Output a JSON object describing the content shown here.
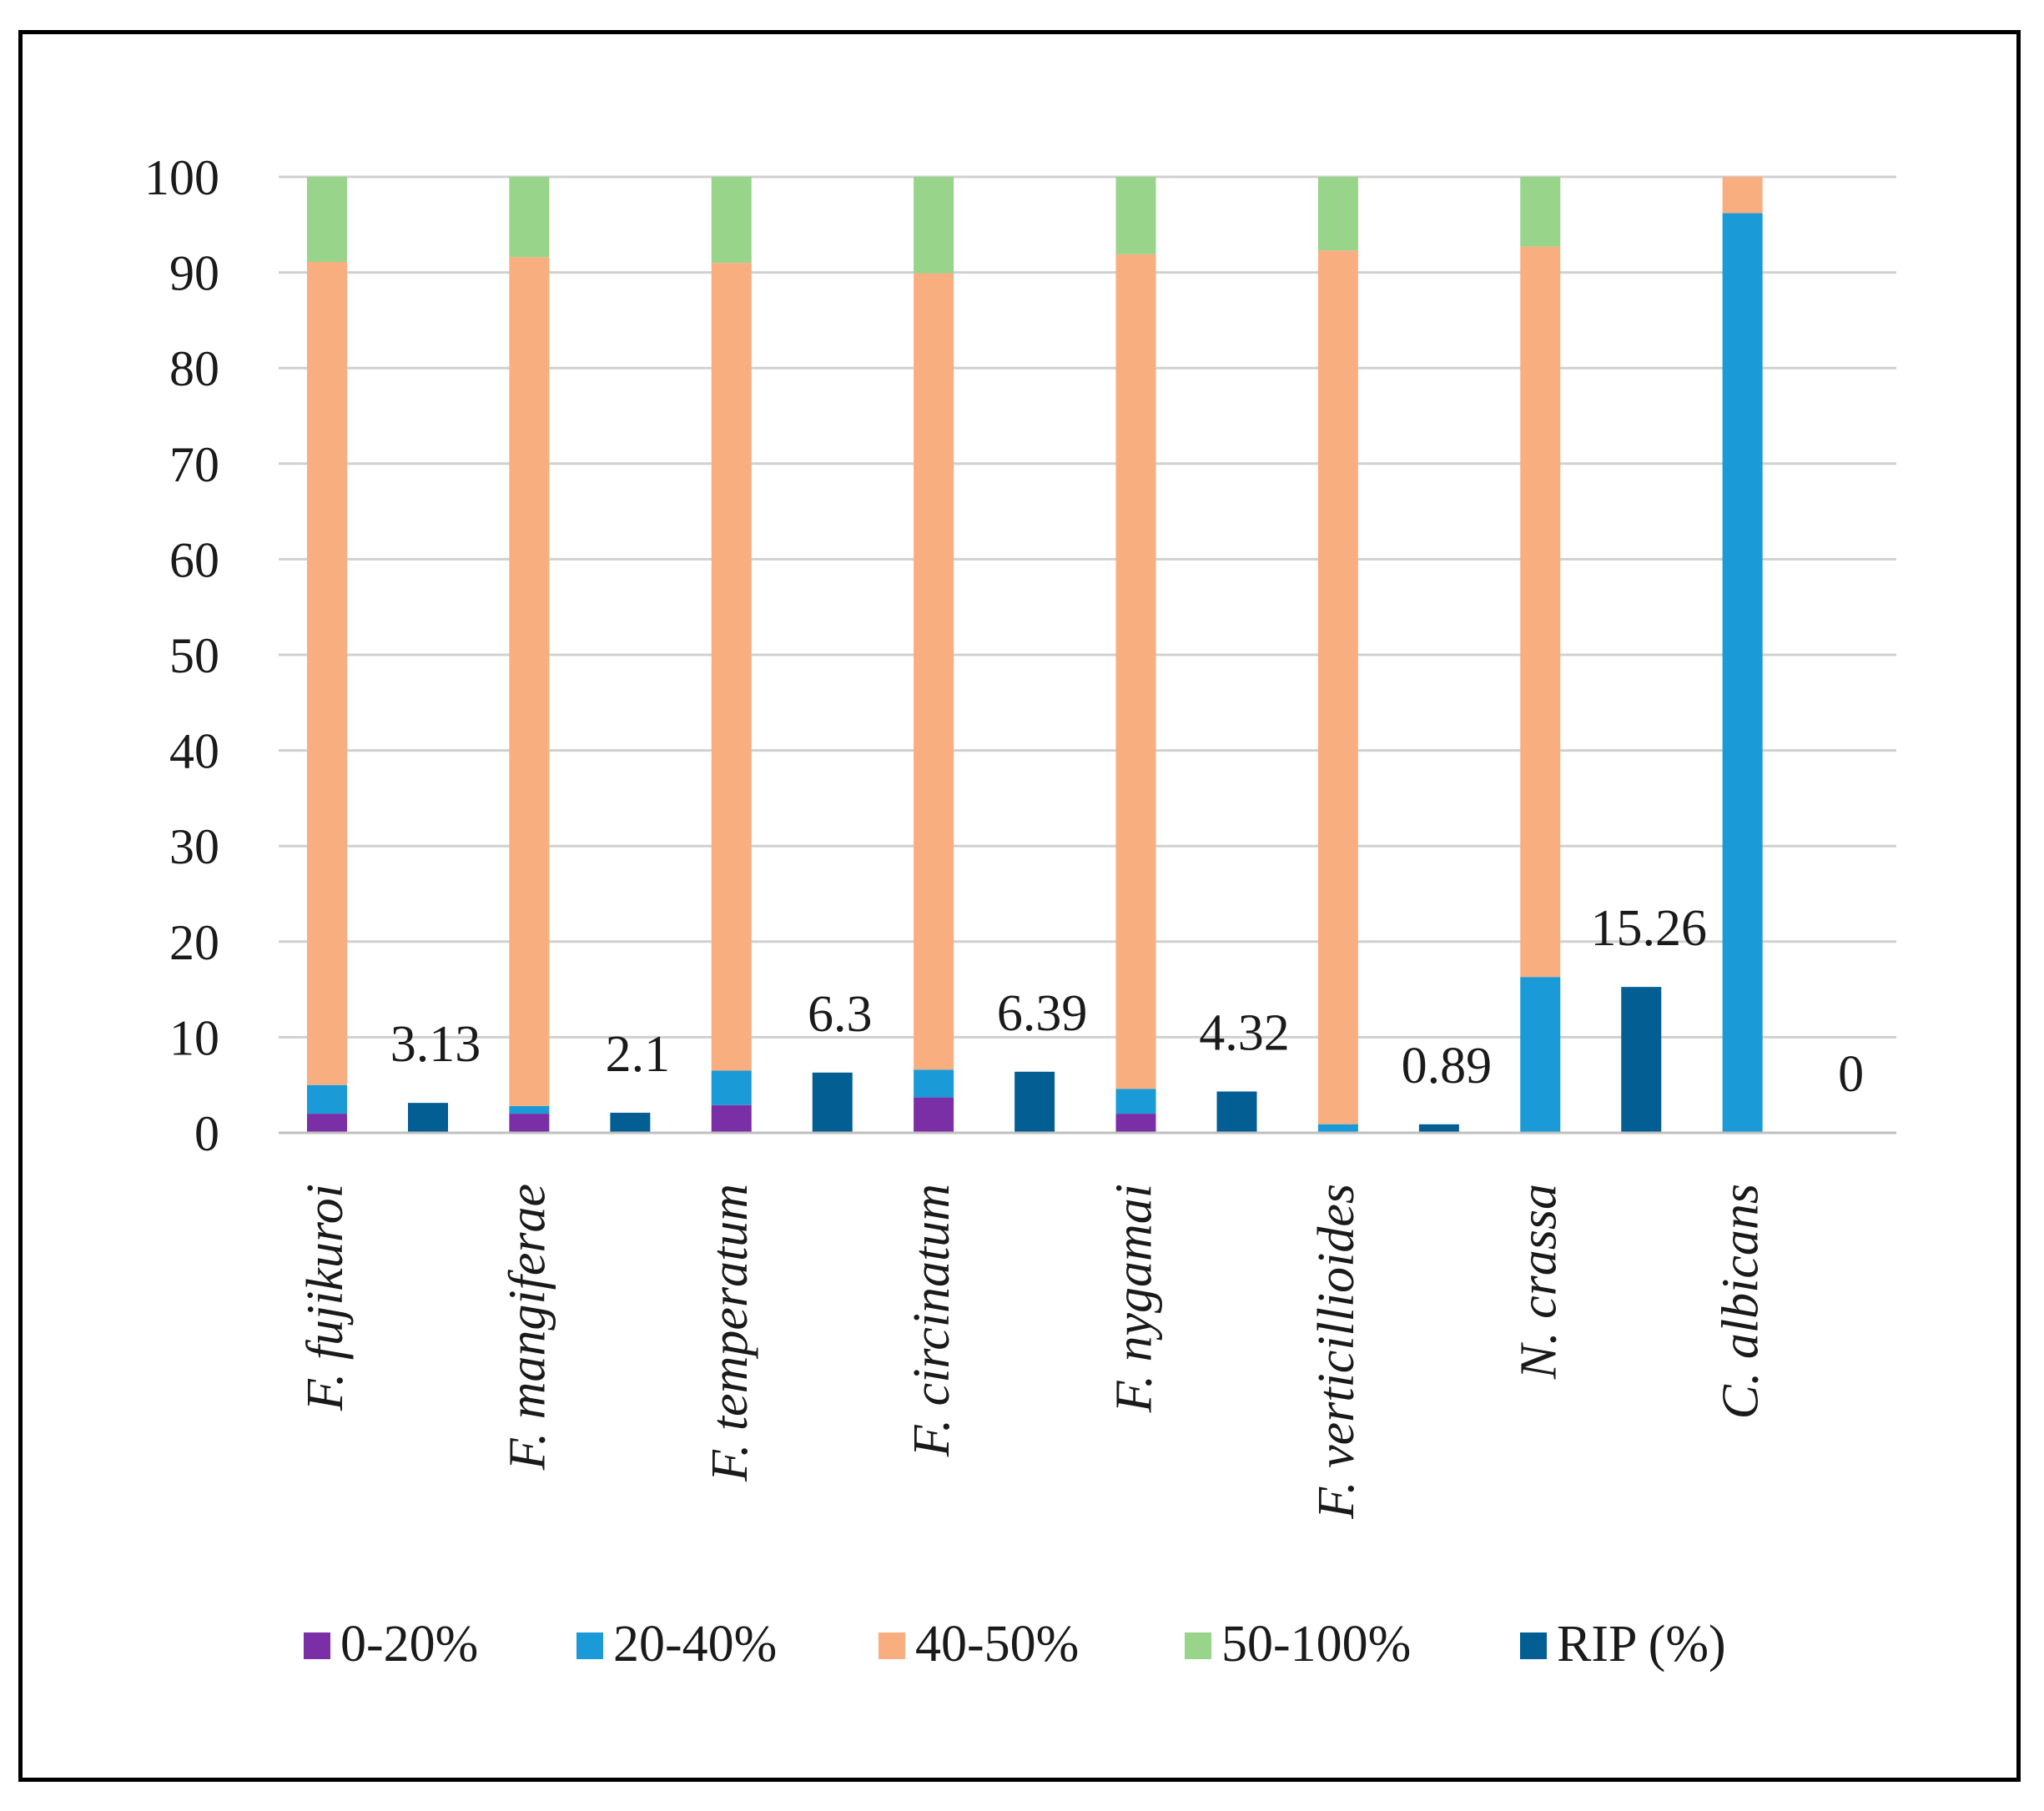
{
  "chart_data": {
    "type": "bar",
    "stacked_series_mode": "stacked",
    "title": "",
    "xlabel": "",
    "ylabel": "",
    "ylim": [
      0,
      100
    ],
    "yticks": [
      0,
      10,
      20,
      30,
      40,
      50,
      60,
      70,
      80,
      90,
      100
    ],
    "grid": true,
    "legend_position": "bottom",
    "categories": [
      "F. fujikuroi",
      "F. mangiferae",
      "F. temperatum",
      "F. circinatum",
      "F. nygamai",
      "F. verticillioides",
      "N. crassa",
      "C. albicans"
    ],
    "stacked_series": [
      {
        "name": "0-20%",
        "color": "#7B2FA6",
        "values": [
          2.0,
          2.0,
          2.9,
          3.7,
          2.0,
          0.0,
          0.0,
          0.0
        ]
      },
      {
        "name": "20-40%",
        "color": "#1A9AD6",
        "values": [
          3.0,
          0.8,
          3.6,
          2.9,
          2.6,
          0.9,
          16.3,
          96.2
        ]
      },
      {
        "name": "40-50%",
        "color": "#F9AE7F",
        "values": [
          86.1,
          88.8,
          84.5,
          83.3,
          87.3,
          91.4,
          76.4,
          3.8
        ]
      },
      {
        "name": "50-100%",
        "color": "#98D48A",
        "values": [
          8.9,
          8.4,
          9.0,
          10.1,
          8.1,
          7.7,
          7.3,
          0.0
        ]
      }
    ],
    "rip_series": {
      "name": "RIP (%)",
      "color": "#035E94",
      "values": [
        3.13,
        2.1,
        6.3,
        6.39,
        4.32,
        0.89,
        15.26,
        0
      ],
      "labels": [
        "3.13",
        "2.1",
        "6.3",
        "6.39",
        "4.32",
        "0.89",
        "15.26",
        "0"
      ]
    }
  }
}
